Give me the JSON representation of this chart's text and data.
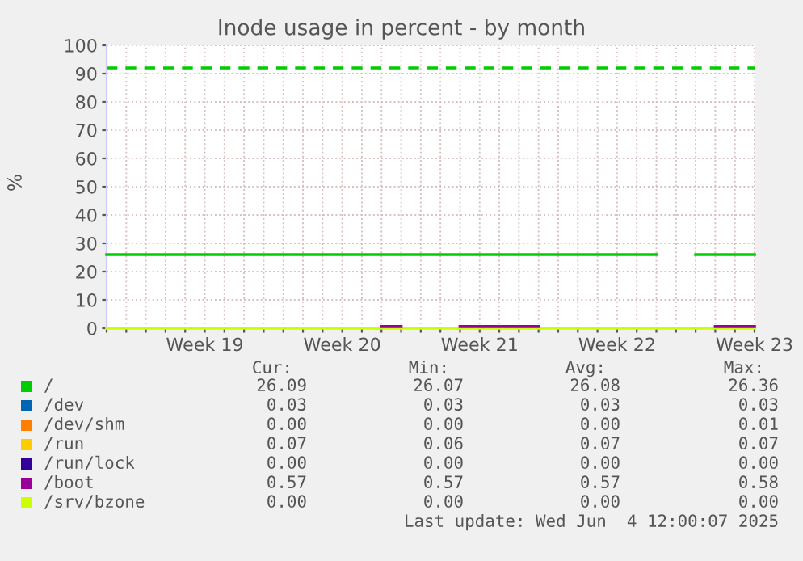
{
  "chart_data": {
    "type": "line",
    "title": "Inode usage in percent - by month",
    "ylabel": "%",
    "categories": [
      null,
      null,
      null,
      null,
      null,
      "Week 19",
      null,
      null,
      null,
      null,
      null,
      null,
      "Week 20",
      null,
      null,
      null,
      null,
      null,
      null,
      "Week 21",
      null,
      null,
      null,
      null,
      null,
      null,
      "Week 22",
      null,
      null,
      null,
      null,
      null,
      null,
      "Week 23"
    ],
    "ylim": [
      0,
      100
    ],
    "yticks": [
      0,
      10,
      20,
      30,
      40,
      50,
      60,
      70,
      80,
      90,
      100
    ],
    "grid": true,
    "legend": "bottom",
    "line_style": "solid",
    "ref_lines": [
      {
        "axis": "y",
        "value": 92,
        "color": "#00cc00",
        "line_style": "dashed"
      }
    ],
    "series": [
      {
        "name": "/",
        "color": "#00cc00",
        "values": [
          26,
          26,
          26,
          26,
          26,
          26,
          26,
          26,
          26,
          26,
          26,
          26,
          26,
          26,
          26,
          26,
          26,
          26,
          26,
          26,
          26,
          26,
          26,
          26,
          26,
          26,
          26,
          26,
          26,
          null,
          26,
          26,
          26,
          26
        ]
      },
      {
        "name": "/dev",
        "color": "#0066b3",
        "values": [
          null,
          null,
          null,
          null,
          null,
          null,
          null,
          null,
          null,
          null,
          null,
          null,
          null,
          null,
          null,
          null,
          null,
          null,
          null,
          null,
          null,
          null,
          null,
          null,
          null,
          null,
          null,
          null,
          null,
          null,
          null,
          null,
          null,
          null
        ]
      },
      {
        "name": "/dev/shm",
        "color": "#ff8000",
        "values": [
          null,
          null,
          null,
          null,
          null,
          null,
          null,
          null,
          null,
          null,
          null,
          null,
          null,
          null,
          null,
          null,
          null,
          null,
          null,
          null,
          null,
          null,
          null,
          null,
          null,
          null,
          null,
          null,
          null,
          null,
          null,
          null,
          null,
          null
        ]
      },
      {
        "name": "/run",
        "color": "#ffcc00",
        "values": [
          null,
          null,
          null,
          null,
          null,
          null,
          null,
          null,
          null,
          null,
          null,
          null,
          null,
          null,
          null,
          null,
          null,
          null,
          null,
          null,
          null,
          null,
          null,
          null,
          null,
          null,
          null,
          null,
          null,
          null,
          null,
          null,
          null,
          null
        ]
      },
      {
        "name": "/run/lock",
        "color": "#330099",
        "values": [
          null,
          null,
          null,
          null,
          null,
          null,
          null,
          null,
          null,
          null,
          null,
          null,
          null,
          null,
          null,
          null,
          null,
          null,
          null,
          null,
          null,
          null,
          null,
          null,
          null,
          null,
          null,
          null,
          null,
          null,
          null,
          null,
          null,
          null
        ]
      },
      {
        "name": "/boot",
        "color": "#990099",
        "values": [
          null,
          null,
          null,
          null,
          null,
          null,
          null,
          null,
          null,
          null,
          null,
          null,
          null,
          null,
          0.6,
          0.6,
          null,
          null,
          0.6,
          0.6,
          0.6,
          0.6,
          0.6,
          null,
          null,
          null,
          null,
          null,
          null,
          null,
          null,
          0.6,
          0.6,
          0.6
        ]
      },
      {
        "name": "/srv/bzone",
        "color": "#ccff00",
        "values": [
          0,
          0,
          0,
          0,
          0,
          0,
          0,
          0,
          0,
          0,
          0,
          0,
          0,
          0,
          0,
          0,
          0,
          0,
          0,
          0,
          0,
          0,
          0,
          0,
          0,
          0,
          0,
          0,
          0,
          0,
          0,
          0,
          0,
          0
        ]
      }
    ],
    "annotations": [
      "Cur:",
      "Min:",
      "Avg:",
      "Max:",
      "26.09",
      "26.07",
      "26.08",
      "26.36",
      "0.03",
      "0.03",
      "0.03",
      "0.03",
      "0.00",
      "0.00",
      "0.00",
      "0.01",
      "0.07",
      "0.06",
      "0.07",
      "0.07",
      "0.00",
      "0.00",
      "0.00",
      "0.00",
      "0.57",
      "0.57",
      "0.57",
      "0.58",
      "0.00",
      "0.00",
      "0.00",
      "0.00",
      "Last update: Wed Jun  4 12:00:07 2025"
    ]
  }
}
